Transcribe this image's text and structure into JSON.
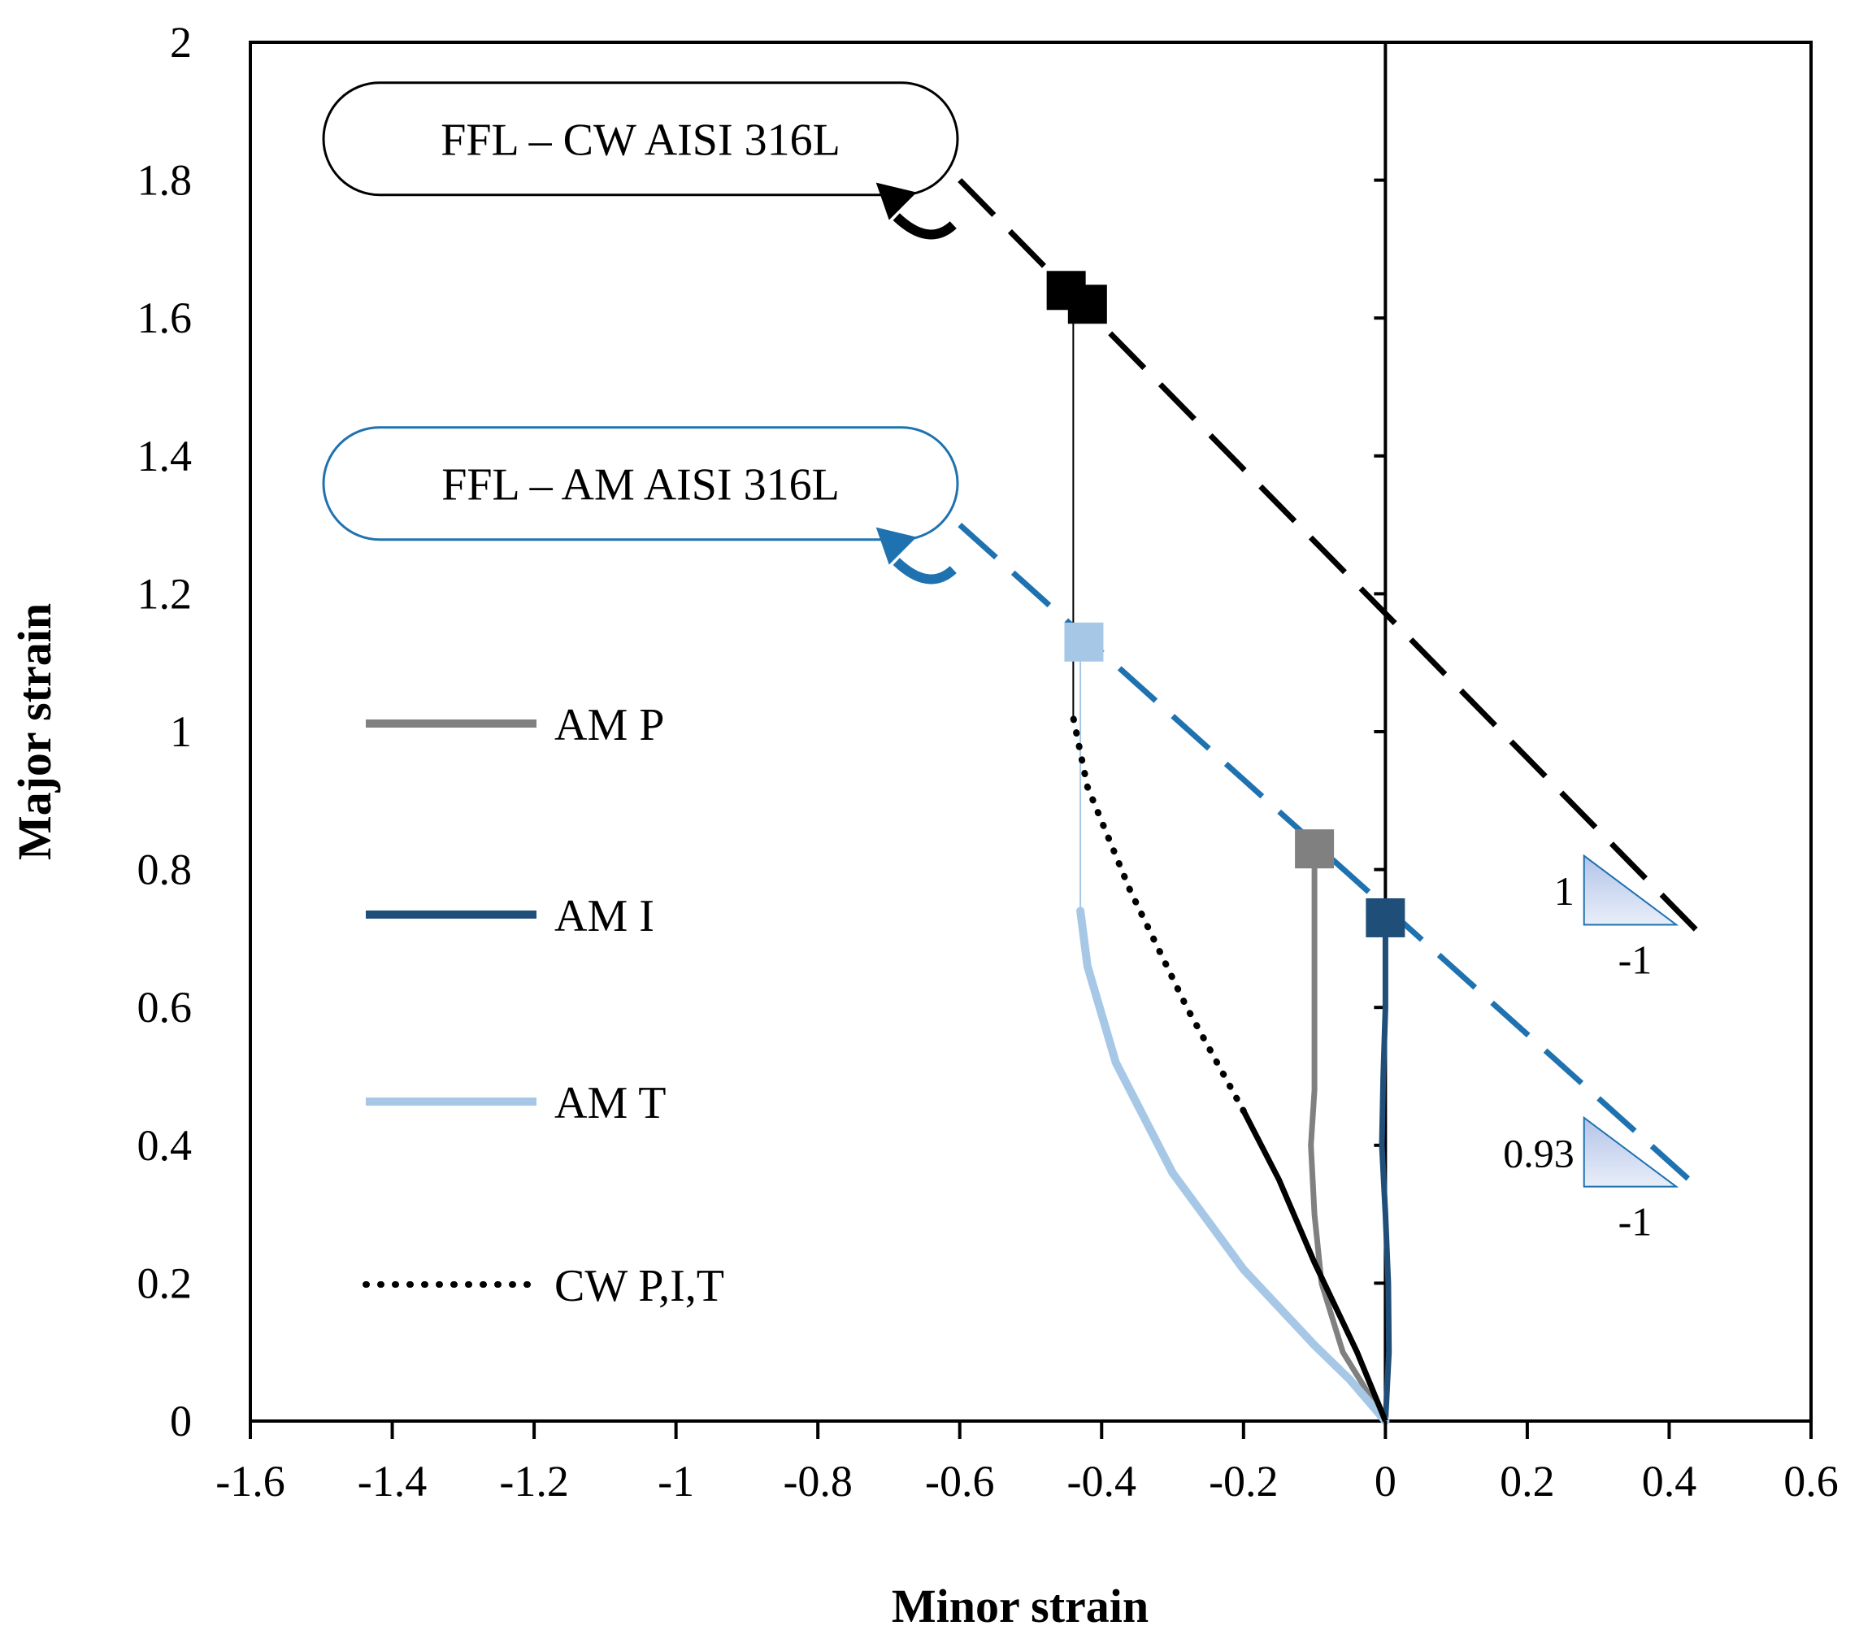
{
  "chart_data": {
    "type": "line",
    "xlabel": "Minor strain",
    "ylabel": "Major strain",
    "xlim": [
      -1.6,
      0.6
    ],
    "ylim": [
      0,
      2
    ],
    "x_ticks": [
      -1.6,
      -1.4,
      -1.2,
      -1,
      -0.8,
      -0.6,
      -0.4,
      -0.2,
      0,
      0.2,
      0.4,
      0.6
    ],
    "x_tick_labels": [
      "-1.6",
      "-1.4",
      "-1.2",
      "-1",
      "-0.8",
      "-0.6",
      "-0.4",
      "-0.2",
      "0",
      "0.2",
      "0.4",
      "0.6"
    ],
    "y_ticks": [
      0,
      0.2,
      0.4,
      0.6,
      0.8,
      1,
      1.2,
      1.4,
      1.6,
      1.8,
      2
    ],
    "y_tick_labels": [
      "0",
      "0.2",
      "0.4",
      "0.6",
      "0.8",
      "1",
      "1.2",
      "1.4",
      "1.6",
      "1.8",
      "2"
    ],
    "legend": [
      {
        "label": "AM P",
        "style": "solid",
        "color": "#808080"
      },
      {
        "label": "AM I",
        "style": "solid",
        "color": "#1f4e79"
      },
      {
        "label": "AM T",
        "style": "solid",
        "color": "#a6c8e6"
      },
      {
        "label": "CW P,I,T",
        "style": "dotted",
        "color": "#000000"
      }
    ],
    "ffl_lines": [
      {
        "name": "FFL – CW AISI 316L",
        "color": "#000000",
        "x": [
          -0.6,
          0.45
        ],
        "y": [
          1.8,
          0.7
        ]
      },
      {
        "name": "FFL – AM AISI 316L",
        "color": "#1f72b0",
        "x": [
          -0.6,
          0.45
        ],
        "y": [
          1.3,
          0.33
        ]
      }
    ],
    "series": [
      {
        "name": "AM P",
        "color": "#808080",
        "x": [
          0,
          -0.03,
          -0.06,
          -0.09,
          -0.1,
          -0.105,
          -0.1,
          -0.1,
          -0.1
        ],
        "y": [
          0,
          0.05,
          0.1,
          0.2,
          0.3,
          0.4,
          0.48,
          0.6,
          0.83
        ]
      },
      {
        "name": "AM I",
        "color": "#1f4e79",
        "x": [
          0,
          0.005,
          0.004,
          0.0,
          -0.005,
          -0.003,
          0.0,
          0.0
        ],
        "y": [
          0,
          0.1,
          0.2,
          0.3,
          0.4,
          0.5,
          0.6,
          0.73
        ]
      },
      {
        "name": "AM T",
        "color": "#a6c8e6",
        "x": [
          0,
          -0.05,
          -0.1,
          -0.2,
          -0.3,
          -0.38,
          -0.42,
          -0.43
        ],
        "y": [
          0,
          0.06,
          0.11,
          0.22,
          0.36,
          0.52,
          0.66,
          0.74
        ]
      },
      {
        "name": "CW P,I,T",
        "color": "#000000",
        "x": [
          0,
          -0.04,
          -0.1,
          -0.15,
          -0.2,
          -0.28,
          -0.36,
          -0.42,
          -0.44
        ],
        "y": [
          0,
          0.1,
          0.23,
          0.35,
          0.45,
          0.6,
          0.77,
          0.92,
          1.02
        ]
      }
    ],
    "verticals": [
      {
        "color": "#000000",
        "x": -0.44,
        "y": [
          1.02,
          1.63
        ]
      },
      {
        "color": "#a6c8e6",
        "x": -0.43,
        "y": [
          0.74,
          1.13
        ]
      }
    ],
    "markers": [
      {
        "x": -0.45,
        "y": 1.64,
        "color": "#000000"
      },
      {
        "x": -0.42,
        "y": 1.62,
        "color": "#000000"
      },
      {
        "x": -0.425,
        "y": 1.13,
        "color": "#a6c8e6"
      },
      {
        "x": -0.1,
        "y": 0.83,
        "color": "#808080"
      },
      {
        "x": 0.0,
        "y": 0.73,
        "color": "#1f4e79"
      }
    ],
    "labels": [
      {
        "text": "FFL – CW AISI 316L",
        "x": -1.05,
        "y": 1.86,
        "color": "#000000"
      },
      {
        "text": "FFL – AM AISI 316L",
        "x": -1.05,
        "y": 1.36,
        "color": "#1f72b0"
      }
    ],
    "slope_triangles": [
      {
        "x": [
          0.28,
          0.41
        ],
        "y": [
          0.72,
          0.82
        ],
        "rise_label": "1",
        "run_label": "-1"
      },
      {
        "x": [
          0.28,
          0.41
        ],
        "y": [
          0.34,
          0.44
        ],
        "rise_label": "0.93",
        "run_label": "-1"
      }
    ]
  }
}
